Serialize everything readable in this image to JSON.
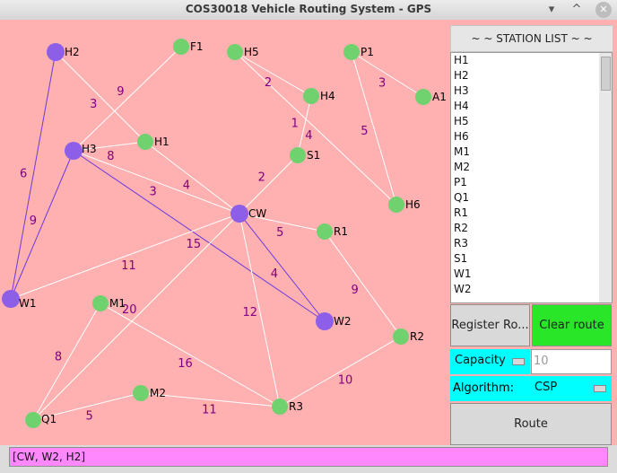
{
  "window": {
    "title": "COS30018 Vehicle Routing System - GPS"
  },
  "colors": {
    "map_bg": "#ffb0b0",
    "edge": "#ffffff",
    "route_edge": "#6a3ae0",
    "weight": "#800080",
    "node_green": "#6fd26f",
    "node_purple": "#8d5ee8"
  },
  "nodes": [
    {
      "name": "H2",
      "color": "purple"
    },
    {
      "name": "F1",
      "color": "green"
    },
    {
      "name": "H5",
      "color": "green"
    },
    {
      "name": "P1",
      "color": "green"
    },
    {
      "name": "A1",
      "color": "green"
    },
    {
      "name": "H4",
      "color": "green"
    },
    {
      "name": "H3",
      "color": "purple"
    },
    {
      "name": "H1",
      "color": "green"
    },
    {
      "name": "S1",
      "color": "green"
    },
    {
      "name": "H6",
      "color": "green"
    },
    {
      "name": "CW",
      "color": "purple"
    },
    {
      "name": "R1",
      "color": "green"
    },
    {
      "name": "W1",
      "color": "purple"
    },
    {
      "name": "M1",
      "color": "green"
    },
    {
      "name": "W2",
      "color": "purple"
    },
    {
      "name": "R2",
      "color": "green"
    },
    {
      "name": "M2",
      "color": "green"
    },
    {
      "name": "R3",
      "color": "green"
    },
    {
      "name": "Q1",
      "color": "green"
    }
  ],
  "edges": [
    {
      "a": "H5",
      "b": "H4",
      "weight": "2",
      "route": false
    },
    {
      "a": "P1",
      "b": "A1",
      "weight": "3",
      "route": false
    },
    {
      "a": "P1",
      "b": "H6",
      "weight": "5",
      "route": false
    },
    {
      "a": "H5",
      "b": "H6",
      "weight": "4",
      "route": false
    },
    {
      "a": "H4",
      "b": "S1",
      "weight": "1",
      "route": false
    },
    {
      "a": "S1",
      "b": "CW",
      "weight": "2",
      "route": false
    },
    {
      "a": "H2",
      "b": "H1",
      "weight": "3",
      "route": false
    },
    {
      "a": "F1",
      "b": "H3",
      "weight": "9",
      "route": false
    },
    {
      "a": "H3",
      "b": "H1",
      "weight": "8",
      "route": false
    },
    {
      "a": "H3",
      "b": "CW",
      "weight": "3",
      "route": false
    },
    {
      "a": "H1",
      "b": "CW",
      "weight": "4",
      "route": false
    },
    {
      "a": "H2",
      "b": "W1",
      "weight": "6",
      "route": true
    },
    {
      "a": "H3",
      "b": "W1",
      "weight": "9",
      "route": true
    },
    {
      "a": "H3",
      "b": "W2",
      "weight": "15",
      "route": true
    },
    {
      "a": "CW",
      "b": "W2",
      "weight": "4",
      "route": true
    },
    {
      "a": "CW",
      "b": "R1",
      "weight": "5",
      "route": false
    },
    {
      "a": "W1",
      "b": "CW",
      "weight": "11",
      "route": false
    },
    {
      "a": "R1",
      "b": "R2",
      "weight": "9",
      "route": false
    },
    {
      "a": "CW",
      "b": "R3",
      "weight": "12",
      "route": false
    },
    {
      "a": "CW",
      "b": "Q1",
      "weight": "20",
      "route": false
    },
    {
      "a": "M1",
      "b": "R3",
      "weight": "16",
      "route": false
    },
    {
      "a": "M1",
      "b": "Q1",
      "weight": "8",
      "route": false
    },
    {
      "a": "Q1",
      "b": "M2",
      "weight": "5",
      "route": false
    },
    {
      "a": "M2",
      "b": "R3",
      "weight": "11",
      "route": false
    },
    {
      "a": "R3",
      "b": "R2",
      "weight": "10",
      "route": false
    }
  ],
  "sidebar": {
    "header": "~ ~ STATION LIST ~ ~",
    "stations": [
      "H1",
      "H2",
      "H3",
      "H4",
      "H5",
      "H6",
      "M1",
      "M2",
      "P1",
      "Q1",
      "R1",
      "R2",
      "R3",
      "S1",
      "W1",
      "W2"
    ],
    "register_label": "Register Ro...",
    "clear_label": "Clear route",
    "capacity_label": "Capacity",
    "capacity_value": "10",
    "algorithm_label": "Algorithm:",
    "algorithm_value": "CSP",
    "route_label": "Route"
  },
  "status": {
    "route_text": "[CW, W2, H2]"
  }
}
